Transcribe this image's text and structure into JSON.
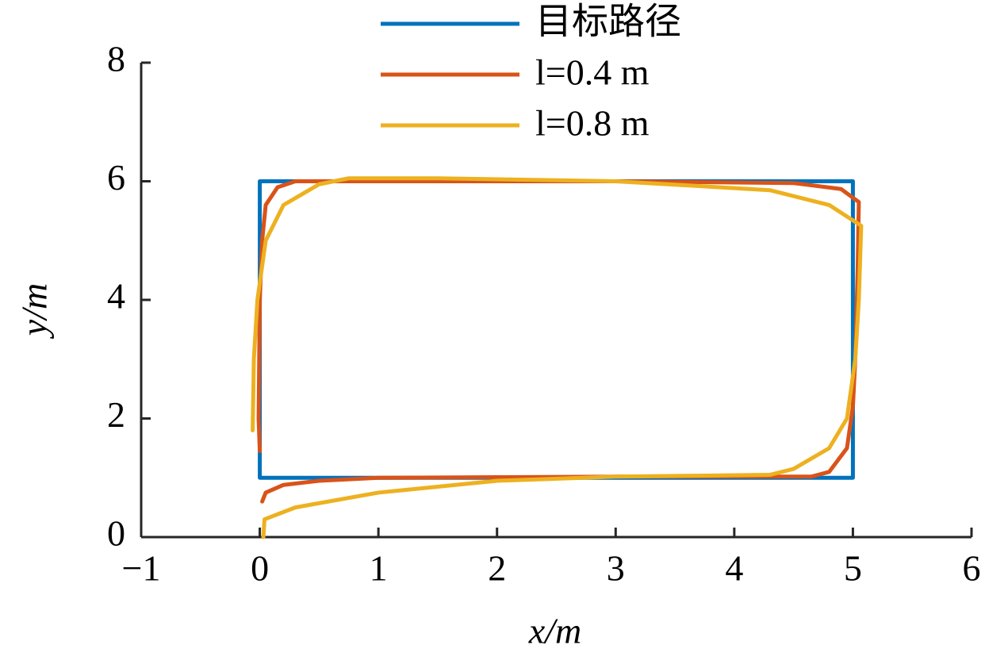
{
  "chart_data": {
    "type": "line",
    "xlabel": "x/m",
    "ylabel": "y/m",
    "xlim": [
      -1,
      6
    ],
    "ylim": [
      0,
      8
    ],
    "xticks": [
      {
        "value": -1,
        "label": "−1"
      },
      0,
      1,
      2,
      3,
      4,
      5,
      6
    ],
    "yticks": [
      0,
      2,
      4,
      6,
      8
    ],
    "grid": false,
    "legend": "top",
    "series": [
      {
        "name": "目标路径",
        "color": "#0072bd",
        "x": [
          0,
          0,
          5,
          5,
          0
        ],
        "y": [
          1,
          6,
          6,
          1,
          1
        ]
      },
      {
        "name": "l=0.4 m",
        "color": "#d95319",
        "x": [
          0.02,
          0.05,
          0.2,
          0.5,
          1,
          2,
          3,
          4,
          4.65,
          4.8,
          4.95,
          5.0,
          5.02,
          5.04,
          5.05,
          4.9,
          4.5,
          3,
          1,
          0.3,
          0.15,
          0.05,
          0.02,
          0,
          -0.01,
          0
        ],
        "y": [
          0.6,
          0.75,
          0.88,
          0.95,
          1,
          1.01,
          1.02,
          1.02,
          1.02,
          1.1,
          1.5,
          2.2,
          3,
          4.5,
          5.65,
          5.87,
          5.97,
          6.0,
          6.0,
          6.0,
          5.9,
          5.6,
          5,
          4,
          2,
          1.45
        ]
      },
      {
        "name": "l=0.8 m",
        "color": "#edb120",
        "x": [
          0.03,
          0.04,
          0.3,
          1,
          2,
          3,
          4.3,
          4.5,
          4.8,
          4.95,
          5.02,
          5.05,
          5.07,
          4.8,
          4.3,
          3,
          1.5,
          0.75,
          0.5,
          0.2,
          0.05,
          -0.02,
          -0.05,
          -0.06
        ],
        "y": [
          0,
          0.3,
          0.5,
          0.75,
          0.95,
          1.02,
          1.05,
          1.15,
          1.5,
          2,
          3,
          4,
          5.25,
          5.6,
          5.85,
          6.0,
          6.05,
          6.05,
          5.95,
          5.6,
          5,
          4,
          3,
          1.8
        ]
      }
    ]
  }
}
